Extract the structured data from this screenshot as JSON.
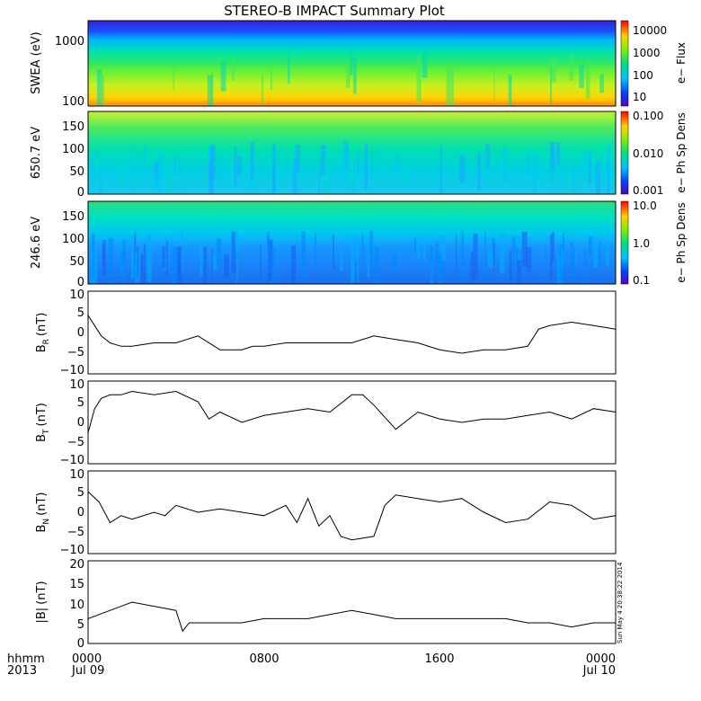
{
  "chart_data": {
    "title": "STEREO-B IMPACT Summary Plot",
    "stamp": "Sun May  4 20:38:22 2014",
    "x_axis": {
      "ticks": [
        {
          "time": "0000",
          "date": "Jul 09"
        },
        {
          "time": "0800",
          "date": ""
        },
        {
          "time": "1600",
          "date": ""
        },
        {
          "time": "0000",
          "date": "Jul 10"
        }
      ],
      "corner_line1": "hhmm",
      "corner_line2": "2013"
    },
    "panels": [
      {
        "id": "swea",
        "type": "heatmap",
        "ylabel": "SWEA (eV)",
        "y_scale": "log",
        "y_ticks": [
          "1000",
          "100"
        ],
        "colorbar": {
          "label": "e− Flux",
          "ticks": [
            "10000",
            "1000",
            "100",
            "10"
          ],
          "scale": "log",
          "range": [
            5,
            20000
          ]
        }
      },
      {
        "id": "pad650",
        "type": "heatmap",
        "ylabel": "650.7 eV",
        "y_range": [
          0,
          180
        ],
        "y_ticks": [
          "150",
          "100",
          "50",
          "0"
        ],
        "colorbar": {
          "label": "e− Ph Sp Dens",
          "ticks": [
            "0.100",
            "0.010",
            "0.001"
          ],
          "scale": "log",
          "range": [
            0.001,
            0.1
          ]
        }
      },
      {
        "id": "pad246",
        "type": "heatmap",
        "ylabel": "246.6 eV",
        "y_range": [
          0,
          180
        ],
        "y_ticks": [
          "150",
          "100",
          "50",
          "0"
        ],
        "colorbar": {
          "label": "e− Ph Sp Dens",
          "ticks": [
            "10.0",
            "1.0",
            "0.1"
          ],
          "scale": "log",
          "range": [
            0.1,
            10
          ]
        }
      },
      {
        "id": "br",
        "type": "line",
        "ylabel": "B",
        "ylabel_sub": "R",
        "ylabel_unit": "(nT)",
        "ylim": [
          -12,
          12
        ],
        "y_ticks": [
          "10",
          "5",
          "0",
          "−5",
          "−10"
        ],
        "x_hours": [
          0,
          0.3,
          0.6,
          1,
          1.5,
          2,
          3,
          4,
          5,
          6,
          6.5,
          7,
          7.5,
          8,
          9,
          10,
          11,
          12,
          13,
          14,
          15,
          16,
          17,
          18,
          19,
          20,
          20.5,
          21,
          22,
          23,
          24
        ],
        "values": [
          5,
          2,
          -1,
          -3,
          -4,
          -4,
          -3,
          -3,
          -1,
          -5,
          -5,
          -5,
          -4,
          -4,
          -3,
          -3,
          -3,
          -3,
          -1,
          -2,
          -3,
          -5,
          -6,
          -5,
          -5,
          -4,
          1,
          2,
          3,
          2,
          1
        ]
      },
      {
        "id": "bt",
        "type": "line",
        "ylabel": "B",
        "ylabel_sub": "T",
        "ylabel_unit": "(nT)",
        "ylim": [
          -12,
          12
        ],
        "y_ticks": [
          "10",
          "5",
          "0",
          "−5",
          "−10"
        ],
        "x_hours": [
          0,
          0.3,
          0.6,
          1,
          1.5,
          2,
          3,
          4,
          5,
          5.5,
          6,
          7,
          8,
          9,
          10,
          11,
          12,
          12.5,
          13,
          14,
          15,
          16,
          17,
          18,
          19,
          20,
          21,
          22,
          23,
          24
        ],
        "values": [
          -3,
          4,
          7,
          8,
          8,
          9,
          8,
          9,
          6,
          1,
          3,
          0,
          2,
          3,
          4,
          3,
          8,
          8,
          5,
          -2,
          3,
          1,
          0,
          1,
          1,
          2,
          3,
          1,
          4,
          3
        ]
      },
      {
        "id": "bn",
        "type": "line",
        "ylabel": "B",
        "ylabel_sub": "N",
        "ylabel_unit": "(nT)",
        "ylim": [
          -12,
          12
        ],
        "y_ticks": [
          "10",
          "5",
          "0",
          "−5",
          "−10"
        ],
        "x_hours": [
          0,
          0.5,
          1,
          1.5,
          2,
          3,
          3.5,
          4,
          5,
          6,
          7,
          8,
          9,
          9.5,
          10,
          10.5,
          11,
          11.5,
          12,
          13,
          13.5,
          14,
          15,
          16,
          17,
          18,
          19,
          20,
          21,
          22,
          23,
          24
        ],
        "values": [
          6,
          3,
          -3,
          -1,
          -2,
          0,
          -1,
          2,
          0,
          1,
          0,
          -1,
          2,
          -3,
          4,
          -4,
          -1,
          -7,
          -8,
          -7,
          2,
          5,
          4,
          3,
          4,
          0,
          -3,
          -2,
          3,
          2,
          -2,
          -1
        ]
      },
      {
        "id": "bmag",
        "type": "line",
        "ylabel": "|B|",
        "ylabel_unit": "(nT)",
        "ylim": [
          0,
          20
        ],
        "y_ticks": [
          "20",
          "15",
          "10",
          "5",
          "0"
        ],
        "x_hours": [
          0,
          0.5,
          1,
          2,
          3,
          4,
          4.3,
          4.6,
          5,
          6,
          7,
          8,
          9,
          10,
          11,
          12,
          13,
          14,
          15,
          16,
          17,
          18,
          19,
          20,
          21,
          22,
          23,
          24
        ],
        "values": [
          6,
          7,
          8,
          10,
          9,
          8,
          3,
          5,
          5,
          5,
          5,
          6,
          6,
          6,
          7,
          8,
          7,
          6,
          6,
          6,
          6,
          6,
          6,
          5,
          5,
          4,
          5,
          5
        ]
      }
    ]
  }
}
